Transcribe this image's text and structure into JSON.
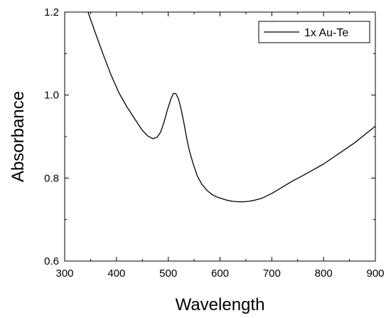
{
  "chart_data": {
    "type": "line",
    "title": "",
    "xlabel": "Wavelength",
    "ylabel": "Absorbance",
    "xlim": [
      300,
      900
    ],
    "ylim": [
      0.6,
      1.2
    ],
    "x_ticks": [
      300,
      400,
      500,
      600,
      700,
      800,
      900
    ],
    "x_tick_labels": [
      "300",
      "400",
      "500",
      "600",
      "700",
      "800",
      "900"
    ],
    "y_ticks": [
      0.6,
      0.8,
      1.0,
      1.2
    ],
    "y_tick_labels": [
      "0.6",
      "0.8",
      "1.0",
      "1.2"
    ],
    "grid": false,
    "legend_position": "top-right",
    "series": [
      {
        "name": "1x Au-Te",
        "color": "#000000",
        "x": [
          345,
          360,
          375,
          390,
          405,
          420,
          435,
          450,
          460,
          470,
          478,
          485,
          492,
          498,
          505,
          510,
          515,
          520,
          525,
          530,
          535,
          540,
          548,
          556,
          565,
          575,
          585,
          595,
          605,
          615,
          625,
          635,
          645,
          655,
          665,
          680,
          700,
          720,
          740,
          760,
          780,
          800,
          820,
          840,
          860,
          880,
          900
        ],
        "y": [
          1.2,
          1.147,
          1.096,
          1.047,
          1.005,
          0.972,
          0.943,
          0.915,
          0.902,
          0.895,
          0.898,
          0.91,
          0.935,
          0.963,
          0.99,
          1.004,
          1.003,
          0.99,
          0.965,
          0.935,
          0.9,
          0.87,
          0.835,
          0.805,
          0.785,
          0.77,
          0.76,
          0.754,
          0.75,
          0.746,
          0.744,
          0.743,
          0.743,
          0.744,
          0.746,
          0.751,
          0.763,
          0.778,
          0.793,
          0.806,
          0.82,
          0.834,
          0.851,
          0.868,
          0.885,
          0.905,
          0.925
        ]
      }
    ]
  }
}
